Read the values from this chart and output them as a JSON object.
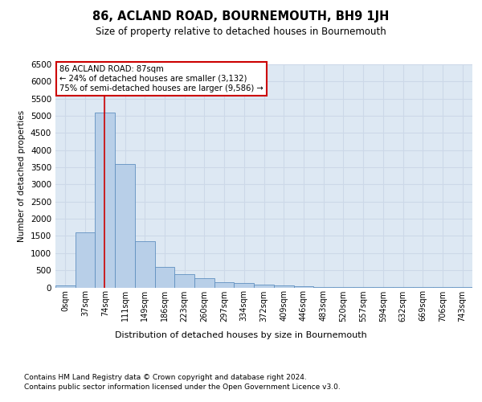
{
  "title": "86, ACLAND ROAD, BOURNEMOUTH, BH9 1JH",
  "subtitle": "Size of property relative to detached houses in Bournemouth",
  "xlabel": "Distribution of detached houses by size in Bournemouth",
  "ylabel": "Number of detached properties",
  "categories": [
    "0sqm",
    "37sqm",
    "74sqm",
    "111sqm",
    "149sqm",
    "186sqm",
    "223sqm",
    "260sqm",
    "297sqm",
    "334sqm",
    "372sqm",
    "409sqm",
    "446sqm",
    "483sqm",
    "520sqm",
    "557sqm",
    "594sqm",
    "632sqm",
    "669sqm",
    "706sqm",
    "743sqm"
  ],
  "values": [
    50,
    1600,
    5100,
    3600,
    1350,
    600,
    390,
    280,
    160,
    120,
    90,
    60,
    30,
    10,
    5,
    3,
    2,
    2,
    1,
    1,
    1
  ],
  "bar_color": "#b8cfe8",
  "bar_edge_color": "#6090c0",
  "grid_color": "#ccd8e8",
  "background_color": "#dde8f3",
  "red_line_x": 1.97,
  "annotation_text": "86 ACLAND ROAD: 87sqm\n← 24% of detached houses are smaller (3,132)\n75% of semi-detached houses are larger (9,586) →",
  "annotation_box_color": "#cc0000",
  "ylim": [
    0,
    6500
  ],
  "yticks": [
    0,
    500,
    1000,
    1500,
    2000,
    2500,
    3000,
    3500,
    4000,
    4500,
    5000,
    5500,
    6000,
    6500
  ],
  "footer_line1": "Contains HM Land Registry data © Crown copyright and database right 2024.",
  "footer_line2": "Contains public sector information licensed under the Open Government Licence v3.0."
}
